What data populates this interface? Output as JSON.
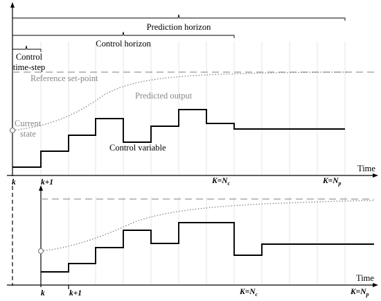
{
  "labels": {
    "prediction_horizon": "Prediction horizon",
    "control_horizon": "Control horizon",
    "control_timestep_line1": "Control",
    "control_timestep_line2": "time-step",
    "reference_setpoint": "Reference set-point",
    "predicted_output": "Predicted output",
    "current_state_line1": "Current",
    "current_state_line2": "state",
    "control_variable": "Control variable",
    "time_top": "Time",
    "time_bottom": "Time"
  },
  "ticks_top": {
    "k": "k",
    "k1": "k+1",
    "nc_main": "K=N",
    "nc_sub": "c",
    "np_main": "K=N",
    "np_sub": "p"
  },
  "ticks_bottom": {
    "k": "k",
    "k1": "k+1",
    "nc_main": "K=N",
    "nc_sub": "c",
    "np_main": "K=N",
    "np_sub": "p"
  },
  "colors": {
    "control": "#000000",
    "reference": "#a8a8a8",
    "predicted": "#8a8a8a",
    "grid": "#e4e4e4"
  }
}
